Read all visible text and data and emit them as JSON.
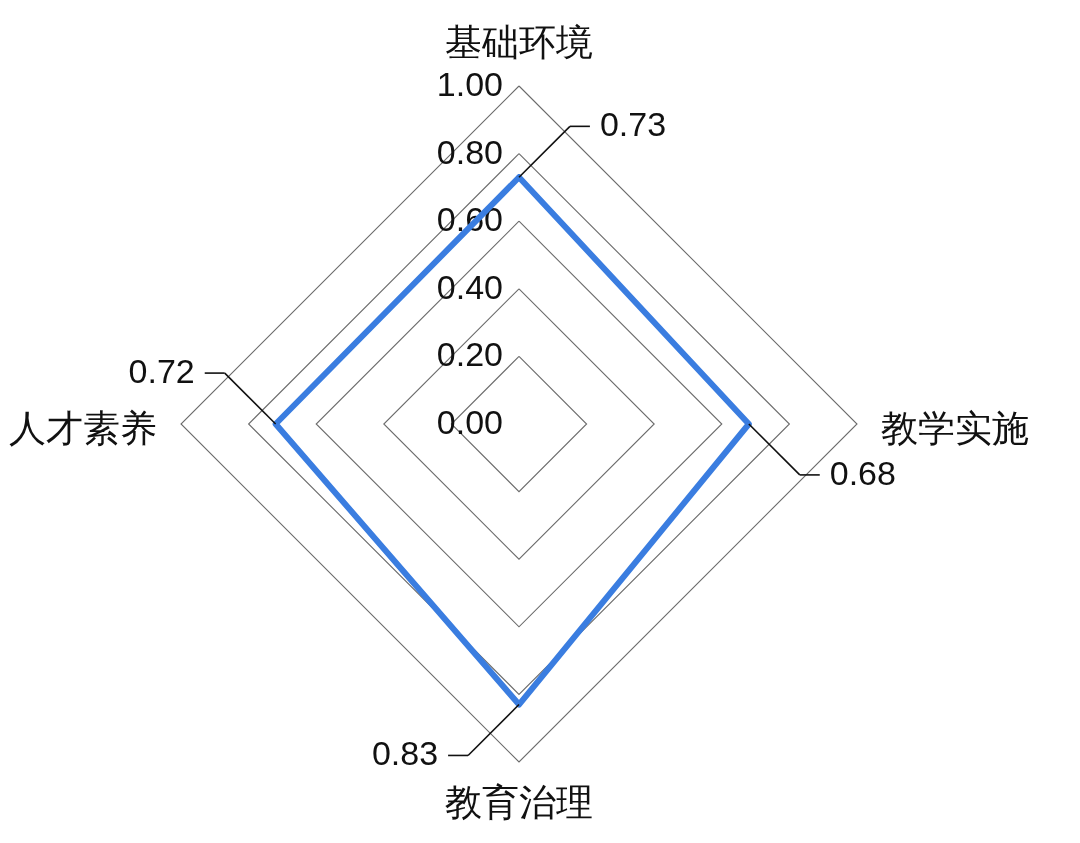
{
  "chart_data": {
    "type": "radar",
    "categories": [
      "基础环境",
      "教学实施",
      "教育治理",
      "人才素养"
    ],
    "series": [
      {
        "color": "#3a7de0",
        "values": [
          0.73,
          0.68,
          0.83,
          0.72
        ]
      }
    ],
    "ylim": [
      0,
      1
    ],
    "yticks": [
      {
        "value": 0,
        "label": "0.00"
      },
      {
        "value": 0.2,
        "label": "0.20"
      },
      {
        "value": 0.4,
        "label": "0.40"
      },
      {
        "value": 0.6,
        "label": "0.60"
      },
      {
        "value": 0.8,
        "label": "0.80"
      },
      {
        "value": 1,
        "label": "1.00"
      }
    ],
    "grid": true,
    "data_labels": true
  }
}
